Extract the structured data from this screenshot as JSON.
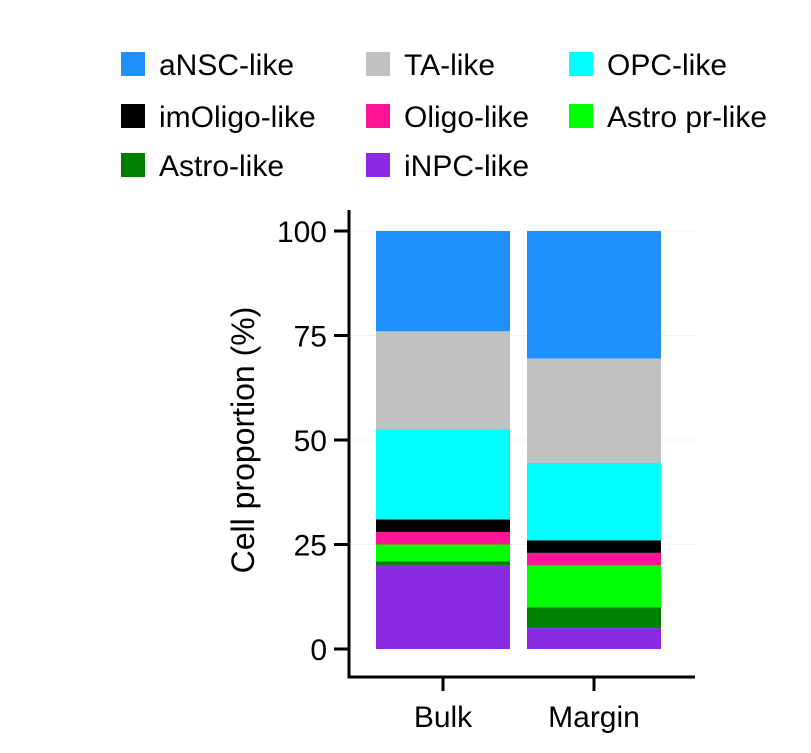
{
  "chart_data": {
    "type": "bar",
    "stacked": true,
    "categories": [
      "Bulk",
      "Margin"
    ],
    "ylabel": "Cell proportion (%)",
    "xlabel": "",
    "ylim": [
      0,
      100
    ],
    "yticks": [
      "0",
      "25",
      "50",
      "75",
      "100"
    ],
    "grid": false,
    "legend_position": "top",
    "series": [
      {
        "name": "iNPC-like",
        "color": "#8a2be2",
        "values": [
          20,
          5
        ]
      },
      {
        "name": "Astro-like",
        "color": "#008000",
        "values": [
          1,
          5
        ]
      },
      {
        "name": "Astro pr-like",
        "color": "#00ff00",
        "values": [
          4,
          10
        ]
      },
      {
        "name": "Oligo-like",
        "color": "#ff1493",
        "values": [
          3,
          3
        ]
      },
      {
        "name": "imOligo-like",
        "color": "#000000",
        "values": [
          3,
          3
        ]
      },
      {
        "name": "OPC-like",
        "color": "#00ffff",
        "values": [
          21.5,
          18.5
        ]
      },
      {
        "name": "TA-like",
        "color": "#c0c0c0",
        "values": [
          23.5,
          25
        ]
      },
      {
        "name": "aNSC-like",
        "color": "#1e90ff",
        "values": [
          24,
          30.5
        ]
      }
    ],
    "legend_order": [
      "aNSC-like",
      "TA-like",
      "OPC-like",
      "imOligo-like",
      "Oligo-like",
      "Astro pr-like",
      "Astro-like",
      "iNPC-like"
    ]
  }
}
